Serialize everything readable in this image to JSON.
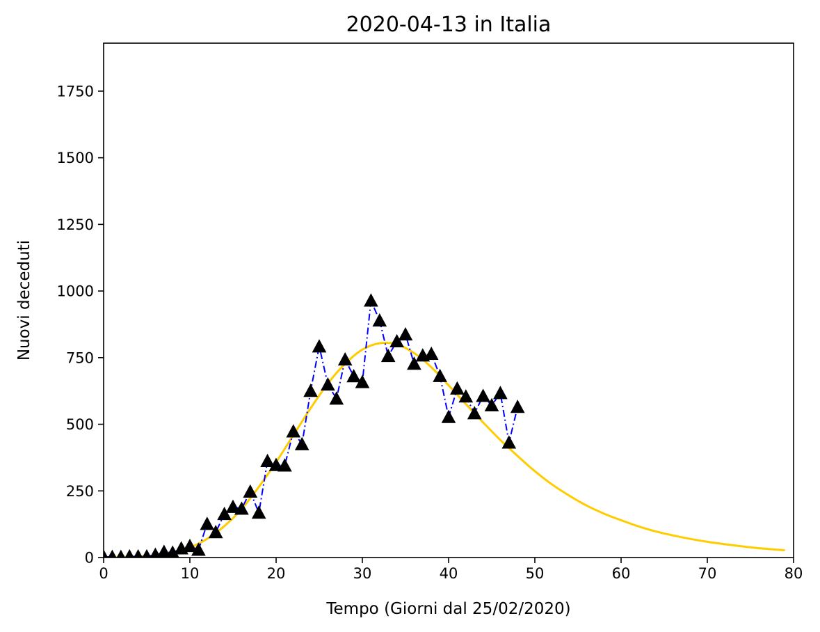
{
  "chart_data": {
    "type": "line",
    "title": "2020-04-13 in Italia",
    "xlabel": "Tempo (Giorni dal 25/02/2020)",
    "ylabel": "Nuovi deceduti",
    "xlim": [
      0,
      80
    ],
    "ylim": [
      0,
      1930
    ],
    "xticks": [
      0,
      10,
      20,
      30,
      40,
      50,
      60,
      70,
      80
    ],
    "yticks": [
      0,
      250,
      500,
      750,
      1000,
      1250,
      1500,
      1750
    ],
    "grid": false,
    "series": [
      {
        "kind": "observed",
        "line_style": "dash-dot",
        "marker": "triangle",
        "line_color": "#0000ff",
        "marker_color": "#000000",
        "x": [
          0,
          1,
          2,
          3,
          4,
          5,
          6,
          7,
          8,
          9,
          10,
          11,
          12,
          13,
          14,
          15,
          16,
          17,
          18,
          19,
          20,
          21,
          22,
          23,
          24,
          25,
          26,
          27,
          28,
          29,
          30,
          31,
          32,
          33,
          34,
          35,
          36,
          37,
          38,
          39,
          40,
          41,
          42,
          43,
          44,
          45,
          46,
          47,
          48
        ],
        "y": [
          3,
          2,
          2,
          4,
          4,
          4,
          10,
          21,
          18,
          34,
          43,
          29,
          126,
          95,
          163,
          190,
          183,
          247,
          168,
          362,
          347,
          345,
          473,
          425,
          625,
          792,
          649,
          596,
          743,
          680,
          658,
          964,
          889,
          756,
          811,
          837,
          727,
          758,
          764,
          681,
          527,
          634,
          604,
          541,
          606,
          571,
          617,
          431,
          565
        ]
      },
      {
        "kind": "fit",
        "line_style": "solid",
        "color": "#ffcc00",
        "x": [
          0,
          2,
          4,
          6,
          8,
          10,
          12,
          14,
          16,
          18,
          20,
          22,
          24,
          26,
          28,
          30,
          32,
          34,
          36,
          38,
          40,
          42,
          44,
          46,
          48,
          50,
          52,
          54,
          56,
          58,
          60,
          62,
          64,
          66,
          68,
          70,
          72,
          74,
          76,
          79
        ],
        "y": [
          1,
          2,
          4,
          8,
          16,
          37,
          70,
          118,
          182,
          265,
          358,
          459,
          560,
          653,
          727,
          780,
          804,
          800,
          767,
          714,
          646,
          576,
          507,
          441,
          381,
          324,
          274,
          232,
          195,
          165,
          140,
          117,
          98,
          83,
          70,
          59,
          50,
          42,
          35,
          27
        ]
      }
    ]
  }
}
